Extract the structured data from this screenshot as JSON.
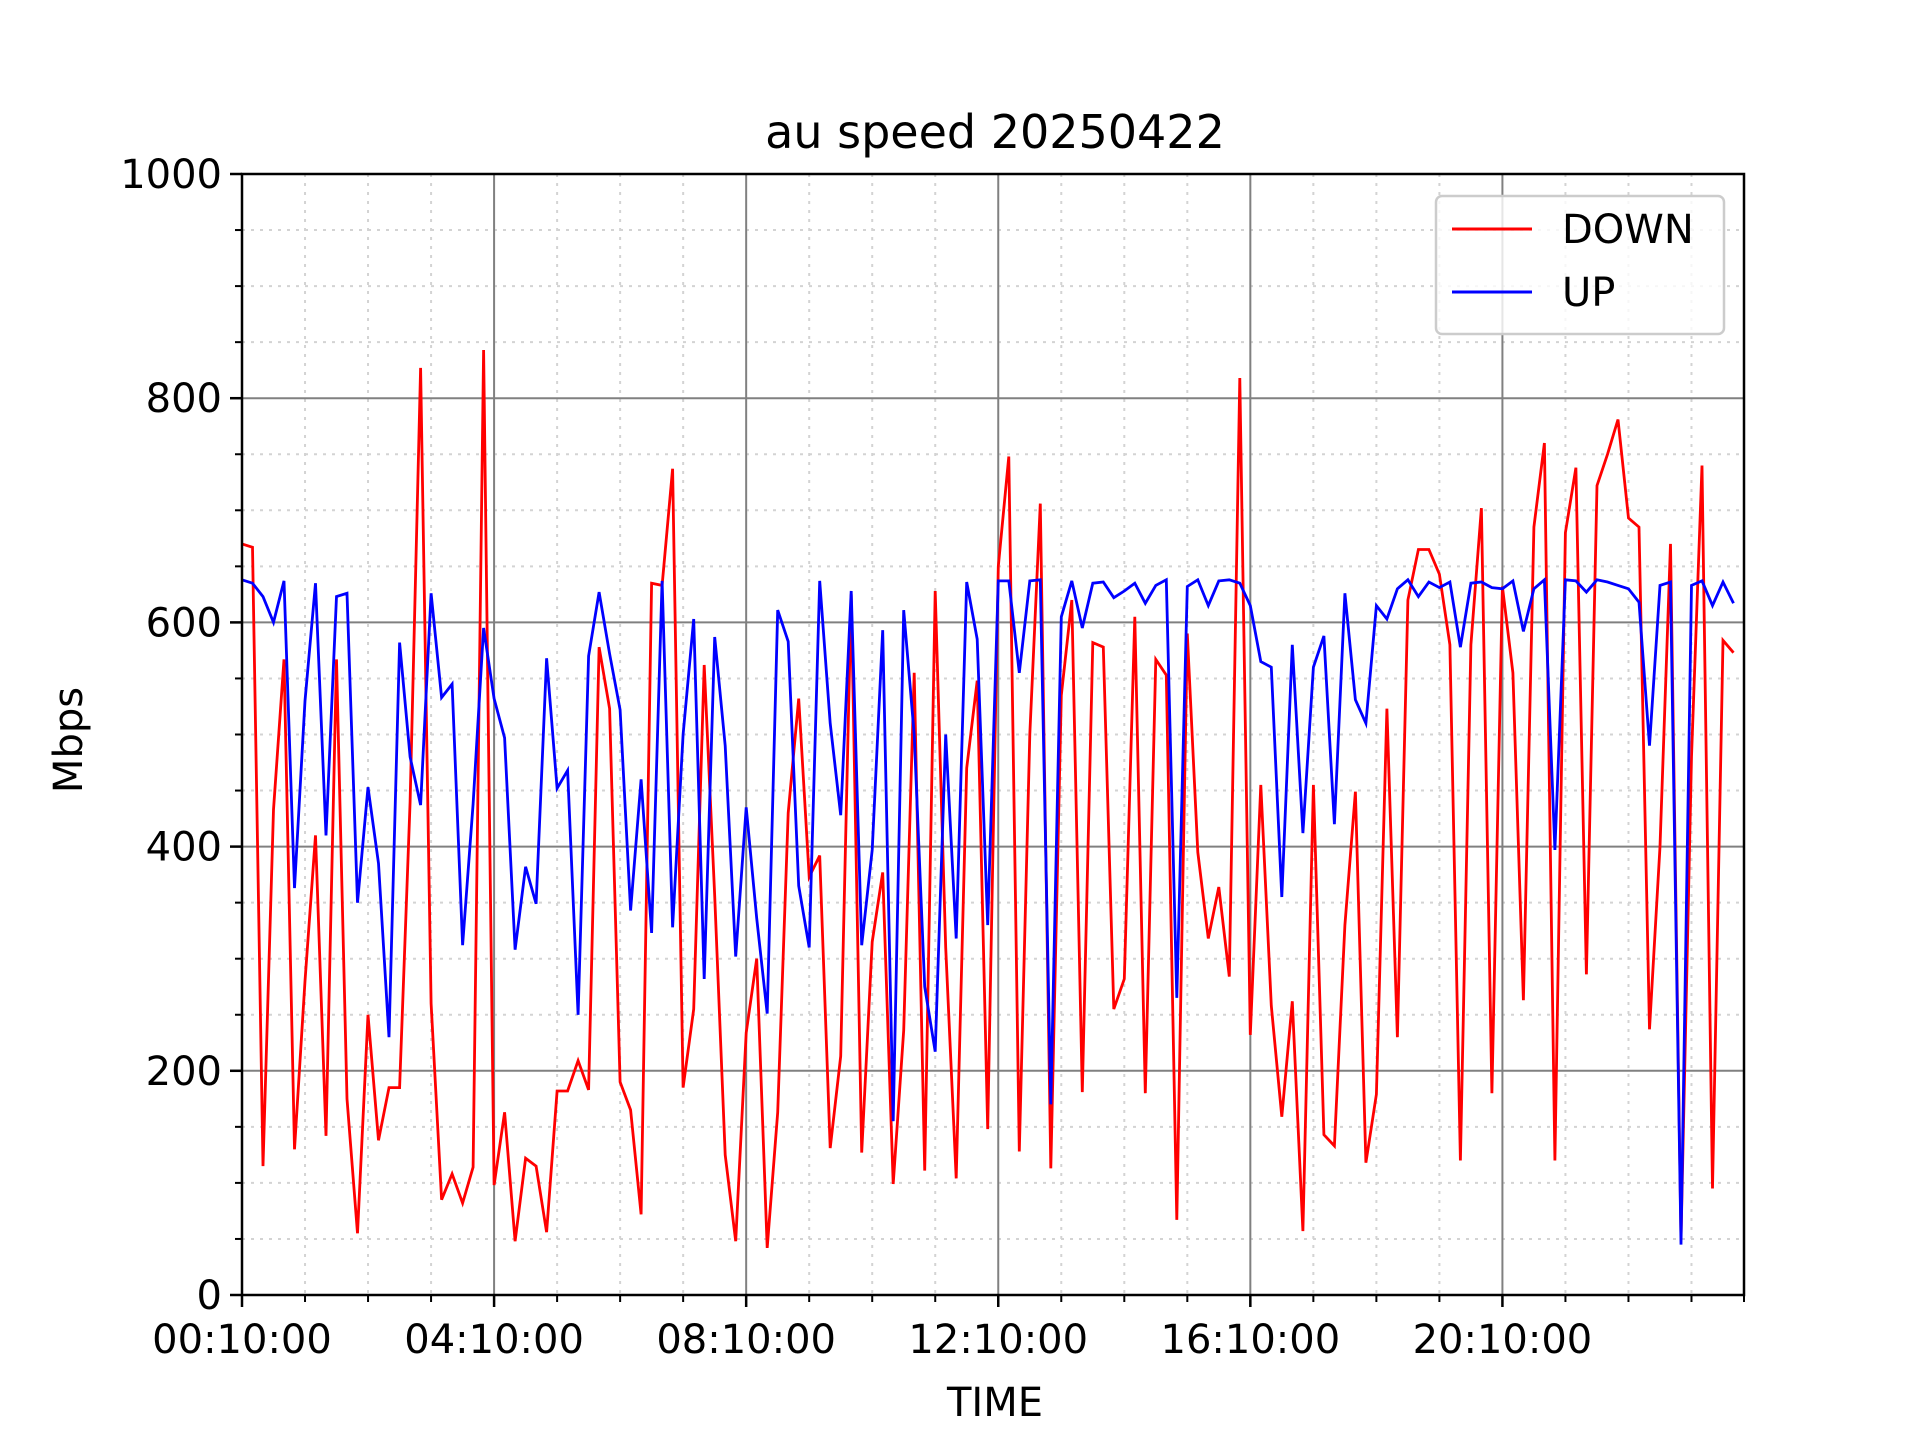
{
  "chart_data": {
    "type": "line",
    "title": "au speed 20250422",
    "xlabel": "TIME",
    "ylabel": "Mbps",
    "ylim": [
      0,
      1000
    ],
    "yticks": [
      0,
      200,
      400,
      600,
      800,
      1000
    ],
    "x_unit": "time of day",
    "xlim": [
      "00:10:00",
      "24:00:00"
    ],
    "xtick_labels": [
      "00:10:00",
      "04:10:00",
      "08:10:00",
      "12:10:00",
      "16:10:00",
      "20:10:00"
    ],
    "grid": {
      "major": true,
      "minor": true
    },
    "legend_position": "upper right",
    "colors": {
      "down": "#ff0000",
      "up": "#0000ff",
      "major_grid": "#808080",
      "minor_grid": "#d3d3d3"
    },
    "series": [
      {
        "name": "DOWN",
        "color": "#ff0000",
        "points": [
          [
            "00:10",
            670
          ],
          [
            "00:20",
            667
          ],
          [
            "00:30",
            115
          ],
          [
            "00:40",
            433
          ],
          [
            "00:50",
            567
          ],
          [
            "01:00",
            130
          ],
          [
            "01:10",
            280
          ],
          [
            "01:20",
            410
          ],
          [
            "01:30",
            142
          ],
          [
            "01:40",
            567
          ],
          [
            "01:50",
            175
          ],
          [
            "02:00",
            55
          ],
          [
            "02:10",
            250
          ],
          [
            "02:20",
            138
          ],
          [
            "02:30",
            185
          ],
          [
            "02:40",
            185
          ],
          [
            "02:50",
            440
          ],
          [
            "03:00",
            827
          ],
          [
            "03:10",
            260
          ],
          [
            "03:20",
            85
          ],
          [
            "03:30",
            108
          ],
          [
            "03:40",
            82
          ],
          [
            "03:50",
            114
          ],
          [
            "04:00",
            843
          ],
          [
            "04:10",
            98
          ],
          [
            "04:20",
            163
          ],
          [
            "04:30",
            48
          ],
          [
            "04:40",
            122
          ],
          [
            "04:50",
            115
          ],
          [
            "05:00",
            56
          ],
          [
            "05:10",
            182
          ],
          [
            "05:20",
            182
          ],
          [
            "05:30",
            209
          ],
          [
            "05:40",
            183
          ],
          [
            "05:50",
            578
          ],
          [
            "06:00",
            523
          ],
          [
            "06:10",
            190
          ],
          [
            "06:20",
            165
          ],
          [
            "06:30",
            72
          ],
          [
            "06:40",
            635
          ],
          [
            "06:50",
            633
          ],
          [
            "07:00",
            737
          ],
          [
            "07:10",
            185
          ],
          [
            "07:20",
            255
          ],
          [
            "07:30",
            562
          ],
          [
            "07:40",
            356
          ],
          [
            "07:50",
            125
          ],
          [
            "08:00",
            48
          ],
          [
            "08:10",
            234
          ],
          [
            "08:20",
            300
          ],
          [
            "08:30",
            42
          ],
          [
            "08:40",
            163
          ],
          [
            "08:50",
            430
          ],
          [
            "09:00",
            532
          ],
          [
            "09:10",
            373
          ],
          [
            "09:20",
            392
          ],
          [
            "09:30",
            131
          ],
          [
            "09:40",
            213
          ],
          [
            "09:50",
            625
          ],
          [
            "10:00",
            127
          ],
          [
            "10:10",
            315
          ],
          [
            "10:20",
            377
          ],
          [
            "10:30",
            99
          ],
          [
            "10:40",
            236
          ],
          [
            "10:50",
            555
          ],
          [
            "11:00",
            111
          ],
          [
            "11:10",
            628
          ],
          [
            "11:20",
            310
          ],
          [
            "11:30",
            104
          ],
          [
            "11:40",
            470
          ],
          [
            "11:50",
            548
          ],
          [
            "12:00",
            148
          ],
          [
            "12:10",
            650
          ],
          [
            "12:20",
            748
          ],
          [
            "12:30",
            128
          ],
          [
            "12:40",
            500
          ],
          [
            "12:50",
            706
          ],
          [
            "13:00",
            113
          ],
          [
            "13:10",
            535
          ],
          [
            "13:20",
            620
          ],
          [
            "13:30",
            181
          ],
          [
            "13:40",
            582
          ],
          [
            "13:50",
            578
          ],
          [
            "14:00",
            255
          ],
          [
            "14:10",
            282
          ],
          [
            "14:20",
            605
          ],
          [
            "14:30",
            180
          ],
          [
            "14:40",
            567
          ],
          [
            "14:50",
            553
          ],
          [
            "15:00",
            67
          ],
          [
            "15:10",
            590
          ],
          [
            "15:20",
            395
          ],
          [
            "15:30",
            318
          ],
          [
            "15:40",
            364
          ],
          [
            "15:50",
            284
          ],
          [
            "16:00",
            818
          ],
          [
            "16:10",
            232
          ],
          [
            "16:20",
            455
          ],
          [
            "16:30",
            258
          ],
          [
            "16:40",
            159
          ],
          [
            "16:50",
            262
          ],
          [
            "17:00",
            57
          ],
          [
            "17:10",
            455
          ],
          [
            "17:20",
            143
          ],
          [
            "17:30",
            133
          ],
          [
            "17:40",
            330
          ],
          [
            "17:50",
            449
          ],
          [
            "18:00",
            118
          ],
          [
            "18:10",
            179
          ],
          [
            "18:20",
            523
          ],
          [
            "18:30",
            230
          ],
          [
            "18:40",
            620
          ],
          [
            "18:50",
            665
          ],
          [
            "19:00",
            665
          ],
          [
            "19:10",
            643
          ],
          [
            "19:20",
            580
          ],
          [
            "19:30",
            120
          ],
          [
            "19:40",
            580
          ],
          [
            "19:50",
            702
          ],
          [
            "20:00",
            180
          ],
          [
            "20:10",
            632
          ],
          [
            "20:20",
            555
          ],
          [
            "20:30",
            263
          ],
          [
            "20:40",
            685
          ],
          [
            "20:50",
            760
          ],
          [
            "21:00",
            120
          ],
          [
            "21:10",
            680
          ],
          [
            "21:20",
            738
          ],
          [
            "21:30",
            286
          ],
          [
            "21:40",
            722
          ],
          [
            "21:50",
            750
          ],
          [
            "22:00",
            781
          ],
          [
            "22:10",
            693
          ],
          [
            "22:20",
            685
          ],
          [
            "22:30",
            237
          ],
          [
            "22:40",
            400
          ],
          [
            "22:50",
            670
          ],
          [
            "23:00",
            50
          ],
          [
            "23:10",
            480
          ],
          [
            "23:20",
            740
          ],
          [
            "23:30",
            95
          ],
          [
            "23:40",
            584
          ],
          [
            "23:50",
            573
          ]
        ]
      },
      {
        "name": "UP",
        "color": "#0000ff",
        "points": [
          [
            "00:10",
            638
          ],
          [
            "00:20",
            635
          ],
          [
            "00:30",
            623
          ],
          [
            "00:40",
            600
          ],
          [
            "00:50",
            637
          ],
          [
            "01:00",
            363
          ],
          [
            "01:10",
            530
          ],
          [
            "01:20",
            635
          ],
          [
            "01:30",
            410
          ],
          [
            "01:40",
            623
          ],
          [
            "01:50",
            626
          ],
          [
            "02:00",
            350
          ],
          [
            "02:10",
            453
          ],
          [
            "02:20",
            385
          ],
          [
            "02:30",
            230
          ],
          [
            "02:40",
            582
          ],
          [
            "02:50",
            480
          ],
          [
            "03:00",
            437
          ],
          [
            "03:10",
            626
          ],
          [
            "03:20",
            533
          ],
          [
            "03:30",
            545
          ],
          [
            "03:40",
            312
          ],
          [
            "03:50",
            438
          ],
          [
            "04:00",
            595
          ],
          [
            "04:10",
            532
          ],
          [
            "04:20",
            497
          ],
          [
            "04:30",
            308
          ],
          [
            "04:40",
            382
          ],
          [
            "04:50",
            349
          ],
          [
            "05:00",
            568
          ],
          [
            "05:10",
            452
          ],
          [
            "05:20",
            468
          ],
          [
            "05:30",
            250
          ],
          [
            "05:40",
            570
          ],
          [
            "05:50",
            627
          ],
          [
            "06:00",
            572
          ],
          [
            "06:10",
            522
          ],
          [
            "06:20",
            343
          ],
          [
            "06:30",
            460
          ],
          [
            "06:40",
            323
          ],
          [
            "06:50",
            637
          ],
          [
            "07:00",
            328
          ],
          [
            "07:10",
            500
          ],
          [
            "07:20",
            603
          ],
          [
            "07:30",
            282
          ],
          [
            "07:40",
            587
          ],
          [
            "07:50",
            490
          ],
          [
            "08:00",
            302
          ],
          [
            "08:10",
            435
          ],
          [
            "08:20",
            336
          ],
          [
            "08:30",
            251
          ],
          [
            "08:40",
            611
          ],
          [
            "08:50",
            583
          ],
          [
            "09:00",
            365
          ],
          [
            "09:10",
            310
          ],
          [
            "09:20",
            637
          ],
          [
            "09:30",
            510
          ],
          [
            "09:40",
            428
          ],
          [
            "09:50",
            628
          ],
          [
            "10:00",
            312
          ],
          [
            "10:10",
            397
          ],
          [
            "10:20",
            593
          ],
          [
            "10:30",
            155
          ],
          [
            "10:40",
            611
          ],
          [
            "10:50",
            500
          ],
          [
            "11:00",
            275
          ],
          [
            "11:10",
            217
          ],
          [
            "11:20",
            500
          ],
          [
            "11:30",
            318
          ],
          [
            "11:40",
            636
          ],
          [
            "11:50",
            585
          ],
          [
            "12:00",
            330
          ],
          [
            "12:10",
            637
          ],
          [
            "12:20",
            637
          ],
          [
            "12:30",
            555
          ],
          [
            "12:40",
            637
          ],
          [
            "12:50",
            638
          ],
          [
            "13:00",
            170
          ],
          [
            "13:10",
            605
          ],
          [
            "13:20",
            637
          ],
          [
            "13:30",
            595
          ],
          [
            "13:40",
            635
          ],
          [
            "13:50",
            636
          ],
          [
            "14:00",
            622
          ],
          [
            "14:10",
            628
          ],
          [
            "14:20",
            635
          ],
          [
            "14:30",
            617
          ],
          [
            "14:40",
            633
          ],
          [
            "14:50",
            638
          ],
          [
            "15:00",
            265
          ],
          [
            "15:10",
            632
          ],
          [
            "15:20",
            638
          ],
          [
            "15:30",
            615
          ],
          [
            "15:40",
            637
          ],
          [
            "15:50",
            638
          ],
          [
            "16:00",
            635
          ],
          [
            "16:10",
            615
          ],
          [
            "16:20",
            565
          ],
          [
            "16:30",
            560
          ],
          [
            "16:40",
            355
          ],
          [
            "16:50",
            580
          ],
          [
            "17:00",
            412
          ],
          [
            "17:10",
            560
          ],
          [
            "17:20",
            588
          ],
          [
            "17:30",
            420
          ],
          [
            "17:40",
            626
          ],
          [
            "17:50",
            531
          ],
          [
            "18:00",
            510
          ],
          [
            "18:10",
            615
          ],
          [
            "18:20",
            603
          ],
          [
            "18:30",
            630
          ],
          [
            "18:40",
            638
          ],
          [
            "18:50",
            623
          ],
          [
            "19:00",
            636
          ],
          [
            "19:10",
            631
          ],
          [
            "19:20",
            636
          ],
          [
            "19:30",
            578
          ],
          [
            "19:40",
            635
          ],
          [
            "19:50",
            636
          ],
          [
            "20:00",
            631
          ],
          [
            "20:10",
            630
          ],
          [
            "20:20",
            637
          ],
          [
            "20:30",
            592
          ],
          [
            "20:40",
            630
          ],
          [
            "20:50",
            638
          ],
          [
            "21:00",
            397
          ],
          [
            "21:10",
            638
          ],
          [
            "21:20",
            637
          ],
          [
            "21:30",
            627
          ],
          [
            "21:40",
            638
          ],
          [
            "21:50",
            636
          ],
          [
            "22:00",
            633
          ],
          [
            "22:10",
            630
          ],
          [
            "22:20",
            618
          ],
          [
            "22:30",
            490
          ],
          [
            "22:40",
            633
          ],
          [
            "22:50",
            636
          ],
          [
            "23:00",
            45
          ],
          [
            "23:10",
            633
          ],
          [
            "23:20",
            637
          ],
          [
            "23:30",
            615
          ],
          [
            "23:40",
            636
          ],
          [
            "23:50",
            617
          ]
        ]
      }
    ]
  }
}
